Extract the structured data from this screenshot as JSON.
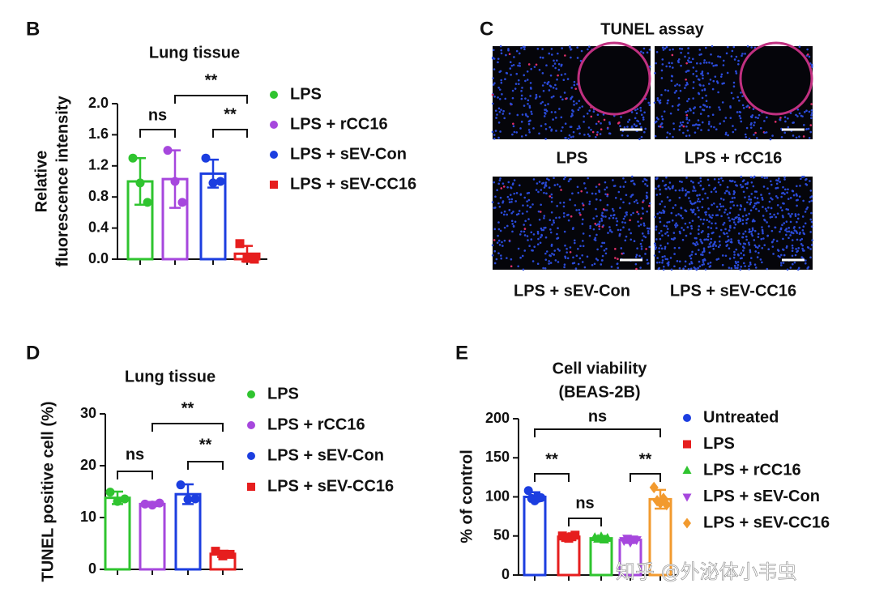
{
  "panels": [
    "B",
    "C",
    "D",
    "E"
  ],
  "image_panel": {
    "title": "TUNEL assay",
    "labels": [
      "LPS",
      "LPS + rCC16",
      "LPS + sEV-Con",
      "LPS + sEV-CC16"
    ]
  },
  "watermark": "知乎 @外泌体小韦虫",
  "chart_data": [
    {
      "type": "bar",
      "title": "Lung tissue",
      "ylabel": [
        "Relative",
        "fluorescence intensity"
      ],
      "ylim": [
        0,
        2.0
      ],
      "yticks": [
        {
          "value": 0,
          "label": "0.0"
        },
        0.4,
        0.8,
        1.2,
        1.6,
        {
          "value": 2.0,
          "label": "2.0"
        }
      ],
      "annotations": [
        "ns",
        "**",
        "**"
      ],
      "groups": [
        {
          "name": "LPS",
          "color": "#2fc42f",
          "marker": "circle",
          "mean": 1.0,
          "sd": 0.3,
          "points": [
            1.3,
            0.98,
            0.73
          ]
        },
        {
          "name": "LPS + rCC16",
          "color": "#a647dd",
          "marker": "circle",
          "mean": 1.03,
          "sd": 0.37,
          "points": [
            1.4,
            1.0,
            0.73
          ]
        },
        {
          "name": "LPS + sEV-Con",
          "color": "#1c3ee0",
          "marker": "circle",
          "mean": 1.1,
          "sd": 0.18,
          "points": [
            1.3,
            0.98,
            1.0
          ]
        },
        {
          "name": "LPS + sEV-CC16",
          "color": "#e61e1e",
          "marker": "square",
          "mean": 0.07,
          "sd": 0.1,
          "points": [
            0.2,
            0.01,
            0.0
          ]
        }
      ]
    },
    {
      "type": "bar",
      "title": "Lung tissue",
      "ylabel": [
        "TUNEL positive cell (%)"
      ],
      "ylim": [
        0,
        30
      ],
      "yticks": [
        0,
        10,
        20,
        30
      ],
      "annotations": [
        "ns",
        "**",
        "**"
      ],
      "groups": [
        {
          "name": "LPS",
          "color": "#2fc42f",
          "marker": "circle",
          "mean": 13.8,
          "sd": 1.2,
          "points": [
            14.9,
            13.1,
            13.6
          ]
        },
        {
          "name": "LPS + rCC16",
          "color": "#a647dd",
          "marker": "circle",
          "mean": 12.6,
          "sd": 0.4,
          "points": [
            12.6,
            12.4,
            12.8
          ]
        },
        {
          "name": "LPS + sEV-Con",
          "color": "#1c3ee0",
          "marker": "circle",
          "mean": 14.5,
          "sd": 1.9,
          "points": [
            16.3,
            13.5,
            13.6
          ]
        },
        {
          "name": "LPS + sEV-CC16",
          "color": "#e61e1e",
          "marker": "square",
          "mean": 3.0,
          "sd": 0.6,
          "points": [
            3.5,
            2.6,
            2.9
          ]
        }
      ]
    },
    {
      "type": "bar",
      "title": [
        "Cell viability",
        "(BEAS-2B)"
      ],
      "ylabel": [
        "% of control"
      ],
      "ylim": [
        0,
        200
      ],
      "yticks": [
        0,
        50,
        100,
        150,
        200
      ],
      "annotations": [
        "ns",
        "**",
        "ns",
        "**"
      ],
      "groups": [
        {
          "name": "Untreated",
          "color": "#1c3ee0",
          "marker": "circle",
          "mean": 100,
          "sd": 6,
          "points": [
            108,
            98,
            95,
            100,
            99
          ]
        },
        {
          "name": "LPS",
          "color": "#e61e1e",
          "marker": "square",
          "mean": 49,
          "sd": 2,
          "points": [
            50,
            48,
            47,
            49,
            51
          ]
        },
        {
          "name": "LPS + rCC16",
          "color": "#2fc42f",
          "marker": "triangle-up",
          "mean": 47,
          "sd": 3,
          "points": [
            48,
            46,
            49,
            45,
            47
          ]
        },
        {
          "name": "LPS + sEV-Con",
          "color": "#a647dd",
          "marker": "triangle-down",
          "mean": 45,
          "sd": 4,
          "points": [
            44,
            47,
            42,
            46,
            45
          ]
        },
        {
          "name": "LPS + sEV-CC16",
          "color": "#f29a2e",
          "marker": "diamond",
          "mean": 97,
          "sd": 12,
          "points": [
            112,
            95,
            92,
            98,
            90
          ]
        }
      ]
    }
  ]
}
